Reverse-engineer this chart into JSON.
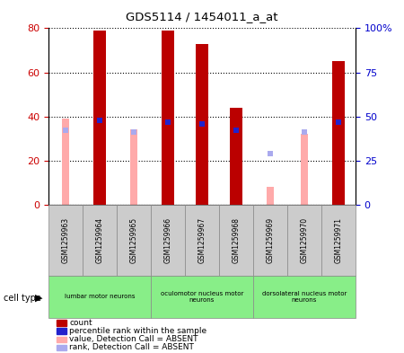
{
  "title": "GDS5114 / 1454011_a_at",
  "samples": [
    "GSM1259963",
    "GSM1259964",
    "GSM1259965",
    "GSM1259966",
    "GSM1259967",
    "GSM1259968",
    "GSM1259969",
    "GSM1259970",
    "GSM1259971"
  ],
  "count_values": [
    null,
    79,
    null,
    79,
    73,
    44,
    null,
    null,
    65
  ],
  "count_color": "#bb0000",
  "value_absent": [
    39,
    null,
    34,
    null,
    null,
    null,
    8,
    32,
    null
  ],
  "value_absent_color": "#ffaaaa",
  "rank_absent": [
    42,
    null,
    41,
    null,
    null,
    null,
    29,
    41,
    null
  ],
  "rank_absent_color": "#aaaaee",
  "percentile_rank": [
    null,
    48,
    null,
    47,
    46,
    42,
    null,
    null,
    47
  ],
  "percentile_rank_color": "#2222cc",
  "ylim_left": [
    0,
    80
  ],
  "ylim_right": [
    0,
    100
  ],
  "yticks_left": [
    0,
    20,
    40,
    60,
    80
  ],
  "ytick_labels_right": [
    "0",
    "25",
    "50",
    "75",
    "100%"
  ],
  "cell_type_groups": [
    {
      "label": "lumbar motor neurons",
      "start": 0,
      "end": 2,
      "color": "#88ee88"
    },
    {
      "label": "oculomotor nucleus motor\nneurons",
      "start": 3,
      "end": 5,
      "color": "#88ee88"
    },
    {
      "label": "dorsolateral nucleus motor\nneurons",
      "start": 6,
      "end": 8,
      "color": "#88ee88"
    }
  ],
  "legend_items": [
    {
      "label": "count",
      "color": "#bb0000"
    },
    {
      "label": "percentile rank within the sample",
      "color": "#2222cc"
    },
    {
      "label": "value, Detection Call = ABSENT",
      "color": "#ffaaaa"
    },
    {
      "label": "rank, Detection Call = ABSENT",
      "color": "#aaaaee"
    }
  ],
  "bar_width": 0.35,
  "background_color": "#ffffff",
  "tick_color_left": "#cc0000",
  "tick_color_right": "#0000cc",
  "sample_box_color": "#cccccc",
  "sample_box_edge": "#888888"
}
